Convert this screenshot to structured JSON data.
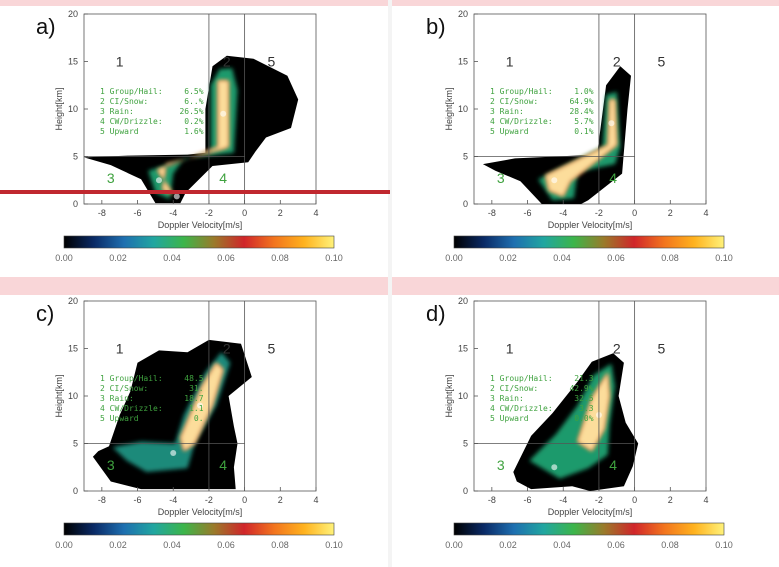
{
  "colorbar": {
    "ticks": [
      "0.00",
      "0.02",
      "0.04",
      "0.06",
      "0.08",
      "0.10"
    ],
    "range": [
      0,
      0.1
    ],
    "colormap": [
      "#000000",
      "#0a2a66",
      "#1e6fb0",
      "#21a6a0",
      "#3cb54a",
      "#9a7a2a",
      "#d0252a",
      "#f2741e",
      "#ffb21e",
      "#fff27a"
    ]
  },
  "chart_data": [
    {
      "type": "heatmap",
      "panel_label": "a)",
      "xlabel": "Doppler Velocity[m/s]",
      "ylabel": "Height[km]",
      "xlim": [
        -9,
        4
      ],
      "ylim": [
        0,
        20
      ],
      "xticks": [
        "-8",
        "-6",
        "-4",
        "-2",
        "0",
        "2",
        "4"
      ],
      "yticks": [
        "0",
        "5",
        "10",
        "15",
        "20"
      ],
      "divider_x": [
        -2,
        0
      ],
      "divider_y": 5,
      "regions": [
        "1",
        "2",
        "3",
        "4",
        "5"
      ],
      "legend": [
        {
          "label": "1 Group/Hail:",
          "value": "6.5%"
        },
        {
          "label": "2 CI/Snow:",
          "value": "6..%"
        },
        {
          "label": "3 Rain:",
          "value": "26.5%"
        },
        {
          "label": "4 CW/Drizzle:",
          "value": "0.2%"
        },
        {
          "label": "5 Upward",
          "value": "1.6%"
        }
      ],
      "series": [
        {
          "x": -1.2,
          "y": 9.5,
          "value": 0.1
        },
        {
          "x": -4.8,
          "y": 2.5,
          "value": 0.1
        },
        {
          "x": -3.8,
          "y": 0.8,
          "value": 0.06
        }
      ]
    },
    {
      "type": "heatmap",
      "panel_label": "b)",
      "xlabel": "Doppler Velocity[m/s]",
      "ylabel": "Height[km]",
      "xlim": [
        -9,
        4
      ],
      "ylim": [
        0,
        20
      ],
      "xticks": [
        "-8",
        "-6",
        "-4",
        "-2",
        "0",
        "2",
        "4"
      ],
      "yticks": [
        "0",
        "5",
        "10",
        "15",
        "20"
      ],
      "divider_x": [
        -2,
        0
      ],
      "divider_y": 5,
      "regions": [
        "1",
        "2",
        "3",
        "4",
        "5"
      ],
      "legend": [
        {
          "label": "1 Group/Hail:",
          "value": "1.0%"
        },
        {
          "label": "2 CI/Snow:",
          "value": "64.9%"
        },
        {
          "label": "3 Rain:",
          "value": "28.4%"
        },
        {
          "label": "4 CW/Drizzle:",
          "value": "5.7%"
        },
        {
          "label": "5 Upward",
          "value": "0.1%"
        }
      ],
      "series": [
        {
          "x": -1.3,
          "y": 8.5,
          "value": 0.1
        },
        {
          "x": -4.5,
          "y": 2.5,
          "value": 0.1
        }
      ]
    },
    {
      "type": "heatmap",
      "panel_label": "c)",
      "xlabel": "Doppler Velocity[m/s]",
      "ylabel": "Height[km]",
      "xlim": [
        -9,
        4
      ],
      "ylim": [
        0,
        20
      ],
      "xticks": [
        "-8",
        "-6",
        "-4",
        "-2",
        "0",
        "2",
        "4"
      ],
      "yticks": [
        "0",
        "5",
        "10",
        "15",
        "20"
      ],
      "divider_x": [
        -2,
        0
      ],
      "divider_y": 5,
      "regions": [
        "1",
        "2",
        "3",
        "4",
        "5"
      ],
      "legend": [
        {
          "label": "1 Group/Hail:",
          "value": "48.5"
        },
        {
          "label": "2 CI/Snow:",
          "value": "31."
        },
        {
          "label": "3 Rain:",
          "value": "18.7"
        },
        {
          "label": "4 CW/Drizzle:",
          "value": "1.1"
        },
        {
          "label": "5 Upward",
          "value": "0."
        }
      ],
      "series": [
        {
          "x": -2.5,
          "y": 9.0,
          "value": 0.1
        },
        {
          "x": -4.0,
          "y": 4.0,
          "value": 0.04
        }
      ]
    },
    {
      "type": "heatmap",
      "panel_label": "d)",
      "xlabel": "Doppler Velocity[m/s]",
      "ylabel": "Height[km]",
      "xlim": [
        -9,
        4
      ],
      "ylim": [
        0,
        20
      ],
      "xticks": [
        "-8",
        "-6",
        "-4",
        "-2",
        "0",
        "2",
        "4"
      ],
      "yticks": [
        "0",
        "5",
        "10",
        "15",
        "20"
      ],
      "divider_x": [
        -2,
        0
      ],
      "divider_y": 5,
      "regions": [
        "1",
        "2",
        "3",
        "4",
        "5"
      ],
      "legend": [
        {
          "label": "1 Group/Hail:",
          "value": "21.3"
        },
        {
          "label": "2 CI/Snow:",
          "value": "42.9%"
        },
        {
          "label": "3 Rain:",
          "value": "32.5"
        },
        {
          "label": "4 CW/Drizzle:",
          "value": "3.3"
        },
        {
          "label": "5 Upward",
          "value": "0.0%"
        }
      ],
      "series": [
        {
          "x": -2.0,
          "y": 8.0,
          "value": 0.1
        },
        {
          "x": -4.5,
          "y": 2.5,
          "value": 0.06
        }
      ]
    }
  ]
}
